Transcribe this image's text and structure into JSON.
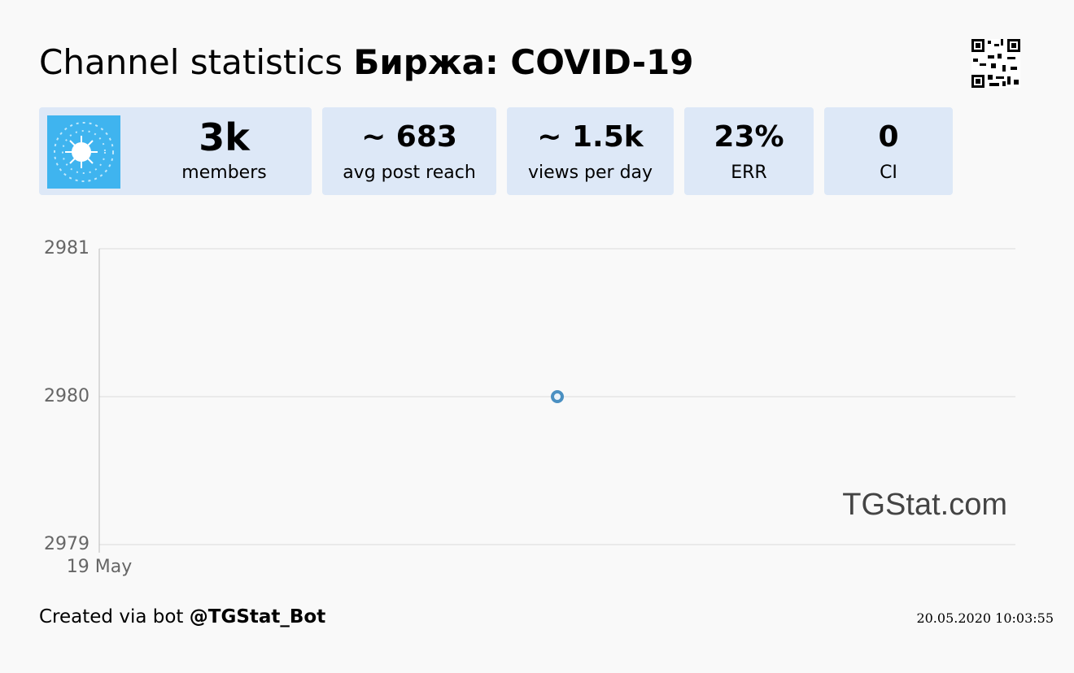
{
  "header": {
    "title": "Channel statistics",
    "channel": "Биржа: COVID-19"
  },
  "stats": [
    {
      "value": "3k",
      "label": "members"
    },
    {
      "value": "~ 683",
      "label": "avg post reach"
    },
    {
      "value": "~ 1.5k",
      "label": "views per day"
    },
    {
      "value": "23%",
      "label": "ERR"
    },
    {
      "value": "0",
      "label": "CI"
    }
  ],
  "chart_data": {
    "type": "scatter",
    "x": [
      1
    ],
    "values": [
      2980
    ],
    "color": "#4a90c2",
    "xlim": [
      0,
      2
    ],
    "xticks": [
      {
        "value": 0,
        "label": "19 May"
      }
    ],
    "ylim": [
      2979,
      2981
    ],
    "yticks": [
      2979,
      2980,
      2981
    ],
    "grid": true
  },
  "watermark": "TGStat.com",
  "footer": {
    "created": "Created via bot",
    "bot": "@TGStat_Bot",
    "timestamp": "20.05.2020 10:03:55"
  }
}
